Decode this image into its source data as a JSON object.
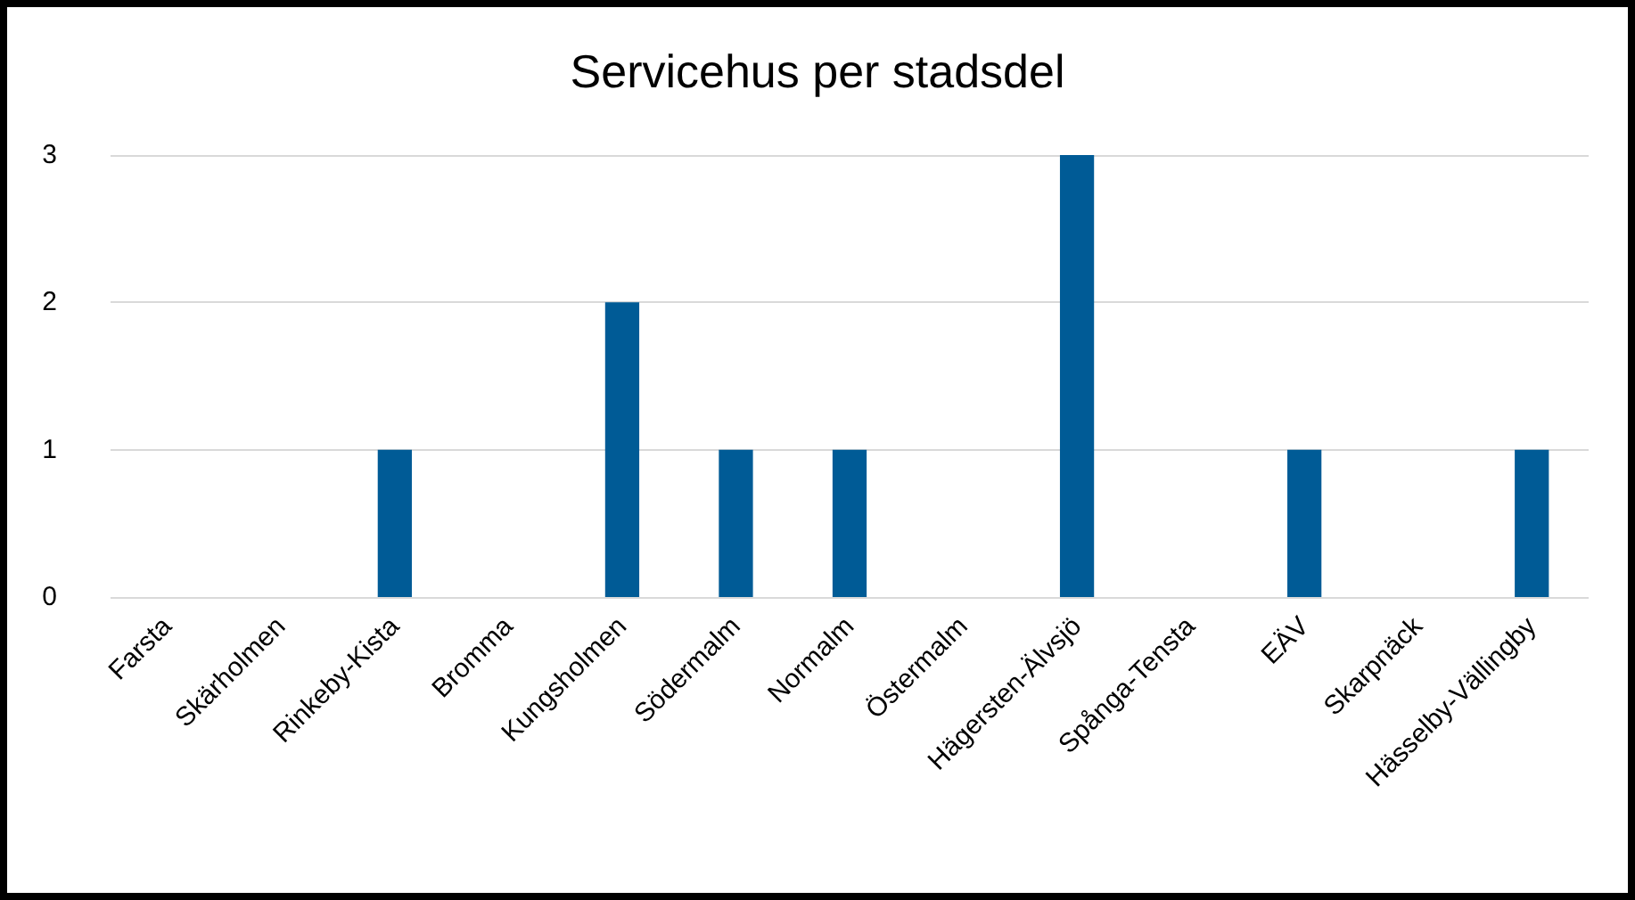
{
  "chart_data": {
    "type": "bar",
    "title": "Servicehus per stadsdel",
    "categories": [
      "Farsta",
      "Skärholmen",
      "Rinkeby-Kista",
      "Bromma",
      "Kungsholmen",
      "Södermalm",
      "Normalm",
      "Östermalm",
      "Hägersten-Älvsjö",
      "Spånga-Tensta",
      "EÄV",
      "Skarpnäck",
      "Hässelby-Vällingby"
    ],
    "values": [
      0,
      0,
      1,
      0,
      2,
      1,
      1,
      0,
      3,
      0,
      1,
      0,
      1
    ],
    "color": "#005b96",
    "ylim": [
      0,
      3
    ],
    "yticks": [
      0,
      1,
      2,
      3
    ],
    "grid": "y"
  }
}
